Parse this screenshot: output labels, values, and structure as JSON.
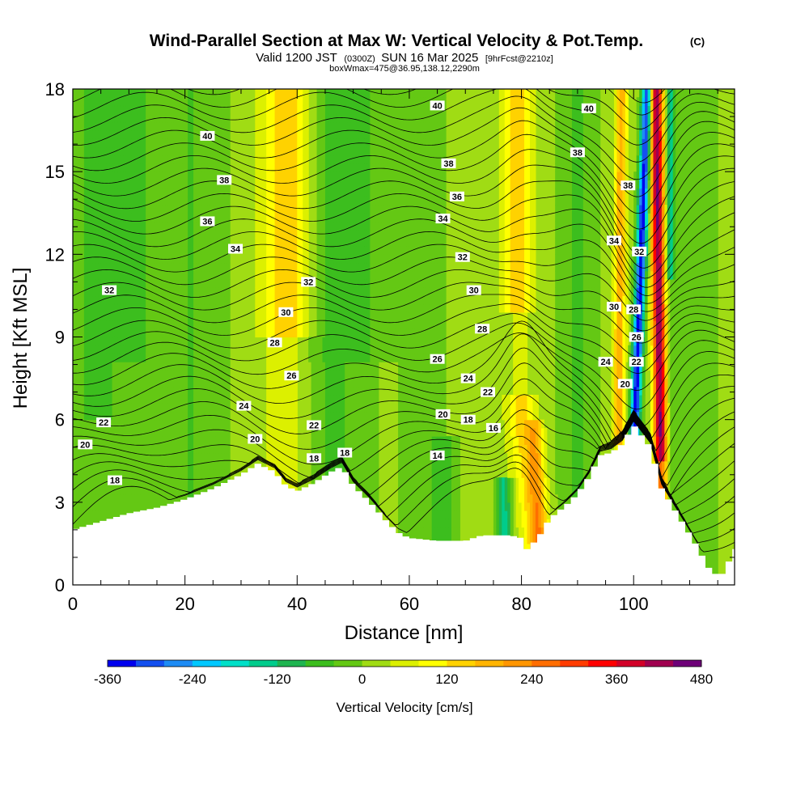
{
  "title": {
    "main": "Wind-Parallel Section at Max W: Vertical Velocity & Pot.Temp.",
    "copyright": "(C)",
    "valid_prefix": "Valid 1200 JST",
    "valid_utc": "(0300Z)",
    "valid_date": "SUN 16 Mar 2025",
    "forecast": "[9hrFcst@2210z]",
    "box": "boxWmax=475@36.95,138.12,2290m"
  },
  "chart_data": {
    "type": "heatmap",
    "xlabel": "Distance [nm]",
    "ylabel": "Height [Kft MSL]",
    "xlim": [
      0,
      118
    ],
    "ylim": [
      0,
      18
    ],
    "x_ticks": [
      "0",
      "20",
      "40",
      "60",
      "80",
      "100"
    ],
    "y_ticks": [
      "0",
      "3",
      "6",
      "9",
      "12",
      "15",
      "18"
    ],
    "colorbar": {
      "title": "Vertical Velocity [cm/s]",
      "tick_labels": [
        "-360",
        "-240",
        "-120",
        "0",
        "120",
        "240",
        "360",
        "480"
      ],
      "levels": [
        -360,
        -320,
        -280,
        -240,
        -200,
        -160,
        -120,
        -80,
        -40,
        0,
        40,
        80,
        120,
        160,
        200,
        240,
        280,
        320,
        360,
        400,
        440,
        480
      ],
      "colors": [
        "#0000ee",
        "#1450f0",
        "#1e8cf5",
        "#00c8ff",
        "#00e0c8",
        "#00cc8c",
        "#1fb450",
        "#3cbe1e",
        "#64c814",
        "#a0dc14",
        "#dcf000",
        "#ffff00",
        "#ffd200",
        "#ffb400",
        "#ff9600",
        "#ff6e00",
        "#ff3c00",
        "#ff0000",
        "#d20028",
        "#a00050",
        "#6e0078"
      ]
    },
    "terrain_kft": [
      [
        0,
        2.0
      ],
      [
        5,
        2.3
      ],
      [
        10,
        2.6
      ],
      [
        15,
        2.8
      ],
      [
        20,
        3.1
      ],
      [
        25,
        3.5
      ],
      [
        30,
        4.0
      ],
      [
        33,
        4.4
      ],
      [
        36,
        4.1
      ],
      [
        38,
        3.6
      ],
      [
        40,
        3.4
      ],
      [
        43,
        3.7
      ],
      [
        46,
        4.1
      ],
      [
        48,
        4.3
      ],
      [
        50,
        3.6
      ],
      [
        53,
        3.0
      ],
      [
        56,
        2.3
      ],
      [
        58,
        1.9
      ],
      [
        60,
        1.7
      ],
      [
        65,
        1.6
      ],
      [
        70,
        1.6
      ],
      [
        73,
        1.8
      ],
      [
        76,
        1.8
      ],
      [
        78,
        1.8
      ],
      [
        80,
        1.7
      ],
      [
        81,
        1.3
      ],
      [
        83,
        1.7
      ],
      [
        85,
        2.4
      ],
      [
        88,
        2.9
      ],
      [
        90,
        3.3
      ],
      [
        92,
        3.9
      ],
      [
        94,
        4.7
      ],
      [
        96,
        4.8
      ],
      [
        98,
        5.1
      ],
      [
        100,
        5.8
      ],
      [
        103,
        5.0
      ],
      [
        105,
        3.5
      ],
      [
        108,
        2.5
      ],
      [
        111,
        1.5
      ],
      [
        114,
        0.4
      ],
      [
        116,
        0.4
      ],
      [
        118,
        1.3
      ]
    ],
    "theta_contour_labels": [
      {
        "text": "40",
        "x": 24,
        "y": 16.3
      },
      {
        "text": "38",
        "x": 27,
        "y": 14.7
      },
      {
        "text": "36",
        "x": 24,
        "y": 13.2
      },
      {
        "text": "34",
        "x": 29,
        "y": 12.2
      },
      {
        "text": "32",
        "x": 6.5,
        "y": 10.7
      },
      {
        "text": "32",
        "x": 42,
        "y": 11.0
      },
      {
        "text": "30",
        "x": 38,
        "y": 9.9
      },
      {
        "text": "28",
        "x": 36,
        "y": 8.8
      },
      {
        "text": "26",
        "x": 39,
        "y": 7.6
      },
      {
        "text": "24",
        "x": 30.5,
        "y": 6.5
      },
      {
        "text": "22",
        "x": 5.5,
        "y": 5.9
      },
      {
        "text": "22",
        "x": 43,
        "y": 5.8
      },
      {
        "text": "20",
        "x": 2.2,
        "y": 5.1
      },
      {
        "text": "20",
        "x": 32.5,
        "y": 5.3
      },
      {
        "text": "18",
        "x": 7.5,
        "y": 3.8
      },
      {
        "text": "18",
        "x": 43,
        "y": 4.6
      },
      {
        "text": "18",
        "x": 48.5,
        "y": 4.8
      },
      {
        "text": "16",
        "x": 75,
        "y": 5.7
      },
      {
        "text": "40",
        "x": 65,
        "y": 17.4
      },
      {
        "text": "38",
        "x": 67,
        "y": 15.3
      },
      {
        "text": "36",
        "x": 68.5,
        "y": 14.1
      },
      {
        "text": "34",
        "x": 66,
        "y": 13.3
      },
      {
        "text": "32",
        "x": 69.5,
        "y": 11.9
      },
      {
        "text": "30",
        "x": 71.5,
        "y": 10.7
      },
      {
        "text": "28",
        "x": 73,
        "y": 9.3
      },
      {
        "text": "26",
        "x": 65,
        "y": 8.2
      },
      {
        "text": "24",
        "x": 70.5,
        "y": 7.5
      },
      {
        "text": "22",
        "x": 74,
        "y": 7.0
      },
      {
        "text": "20",
        "x": 66,
        "y": 6.2
      },
      {
        "text": "18",
        "x": 70.5,
        "y": 6.0
      },
      {
        "text": "14",
        "x": 65,
        "y": 4.7
      },
      {
        "text": "40",
        "x": 92,
        "y": 17.3
      },
      {
        "text": "38",
        "x": 90,
        "y": 15.7
      },
      {
        "text": "38",
        "x": 99,
        "y": 14.5
      },
      {
        "text": "34",
        "x": 96.5,
        "y": 12.5
      },
      {
        "text": "32",
        "x": 101,
        "y": 12.1
      },
      {
        "text": "30",
        "x": 96.5,
        "y": 10.1
      },
      {
        "text": "28",
        "x": 100,
        "y": 10.0
      },
      {
        "text": "26",
        "x": 100.5,
        "y": 9.0
      },
      {
        "text": "24",
        "x": 95,
        "y": 8.1
      },
      {
        "text": "22",
        "x": 100.5,
        "y": 8.1
      },
      {
        "text": "20",
        "x": 98.5,
        "y": 7.3
      }
    ]
  }
}
